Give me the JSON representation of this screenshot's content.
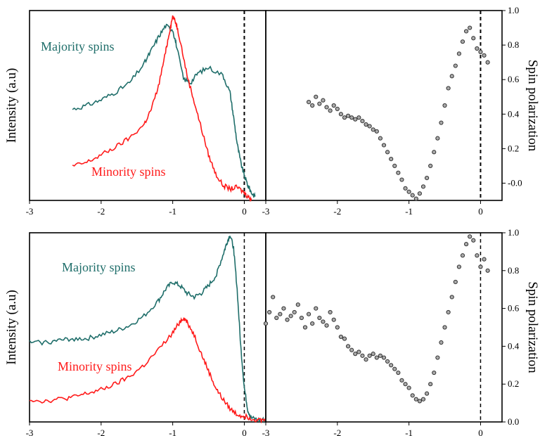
{
  "colors": {
    "majority": "#1f6e6a",
    "minority": "#ff1a1a",
    "axis": "#000000",
    "marker_edge": "#333333",
    "marker_fill": "#aaaaaa"
  },
  "chart_data": [
    {
      "type": "line",
      "panel": "top-left",
      "ylabel": "Intensity (a.u)",
      "xlim": [
        -3,
        0.3
      ],
      "ylim": [
        0,
        1
      ],
      "x_ticks": [
        "-3",
        "-2",
        "-1",
        "0"
      ],
      "fermi_marker_x": 0,
      "series": [
        {
          "name": "Majority spins",
          "color_key": "majority",
          "x": [
            -2.4,
            -2.2,
            -2.0,
            -1.8,
            -1.6,
            -1.4,
            -1.3,
            -1.2,
            -1.1,
            -1.0,
            -0.95,
            -0.85,
            -0.75,
            -0.65,
            -0.5,
            -0.3,
            -0.2,
            -0.15,
            -0.1,
            -0.05,
            0.0,
            0.05,
            0.1,
            0.15
          ],
          "y": [
            0.48,
            0.5,
            0.53,
            0.57,
            0.62,
            0.72,
            0.79,
            0.86,
            0.92,
            0.9,
            0.82,
            0.64,
            0.62,
            0.67,
            0.7,
            0.66,
            0.57,
            0.44,
            0.3,
            0.2,
            0.13,
            0.08,
            0.04,
            0.02
          ]
        },
        {
          "name": "Minority spins",
          "color_key": "minority",
          "x": [
            -2.4,
            -2.2,
            -2.0,
            -1.8,
            -1.6,
            -1.4,
            -1.3,
            -1.2,
            -1.1,
            -1.05,
            -1.0,
            -0.95,
            -0.9,
            -0.8,
            -0.7,
            -0.6,
            -0.5,
            -0.4,
            -0.3,
            -0.2,
            -0.1,
            0.0,
            0.05,
            0.1
          ],
          "y": [
            0.18,
            0.2,
            0.24,
            0.28,
            0.33,
            0.4,
            0.48,
            0.6,
            0.78,
            0.88,
            0.97,
            0.93,
            0.85,
            0.66,
            0.52,
            0.38,
            0.24,
            0.14,
            0.08,
            0.06,
            0.07,
            0.04,
            0.02,
            0.01
          ]
        }
      ]
    },
    {
      "type": "scatter",
      "panel": "top-right",
      "ylabel": "Spin polarization",
      "xlim": [
        -3,
        0.3
      ],
      "ylim": [
        -0.1,
        1.0
      ],
      "x_ticks": [
        "-3",
        "-2",
        "-1",
        "0"
      ],
      "y_ticks": [
        "-0.0",
        "0.2",
        "0.4",
        "0.6",
        "0.8",
        "1.0"
      ],
      "fermi_marker_x": 0,
      "series": [
        {
          "x": [
            -2.4,
            -2.35,
            -2.3,
            -2.25,
            -2.2,
            -2.15,
            -2.1,
            -2.05,
            -2.0,
            -1.95,
            -1.9,
            -1.85,
            -1.8,
            -1.75,
            -1.7,
            -1.65,
            -1.6,
            -1.55,
            -1.5,
            -1.45,
            -1.4,
            -1.35,
            -1.3,
            -1.25,
            -1.2,
            -1.15,
            -1.1,
            -1.05,
            -1.0,
            -0.95,
            -0.9,
            -0.85,
            -0.8,
            -0.75,
            -0.7,
            -0.65,
            -0.6,
            -0.55,
            -0.5,
            -0.45,
            -0.4,
            -0.35,
            -0.3,
            -0.25,
            -0.2,
            -0.15,
            -0.1,
            -0.05,
            0.0,
            0.05,
            0.1
          ],
          "y": [
            0.47,
            0.45,
            0.5,
            0.46,
            0.48,
            0.44,
            0.42,
            0.45,
            0.43,
            0.4,
            0.38,
            0.39,
            0.38,
            0.37,
            0.38,
            0.36,
            0.34,
            0.33,
            0.31,
            0.3,
            0.26,
            0.22,
            0.18,
            0.14,
            0.1,
            0.06,
            0.02,
            -0.03,
            -0.05,
            -0.07,
            -0.09,
            -0.06,
            -0.02,
            0.03,
            0.1,
            0.18,
            0.26,
            0.35,
            0.45,
            0.55,
            0.62,
            0.68,
            0.75,
            0.82,
            0.88,
            0.9,
            0.84,
            0.78,
            0.76,
            0.74,
            0.7
          ]
        }
      ]
    },
    {
      "type": "line",
      "panel": "bottom-left",
      "ylabel": "Intensity (a.u)",
      "xlim": [
        -3,
        0.3
      ],
      "ylim": [
        0,
        1
      ],
      "x_ticks": [
        "-3",
        "-2",
        "-1",
        "0"
      ],
      "fermi_marker_x": 0,
      "series": [
        {
          "name": "Majority spins",
          "color_key": "majority",
          "x": [
            -3.0,
            -2.8,
            -2.6,
            -2.4,
            -2.2,
            -2.0,
            -1.8,
            -1.6,
            -1.4,
            -1.2,
            -1.1,
            -1.0,
            -0.9,
            -0.8,
            -0.7,
            -0.6,
            -0.5,
            -0.4,
            -0.3,
            -0.25,
            -0.2,
            -0.15,
            -0.1,
            -0.05,
            0.0,
            0.05,
            0.1,
            0.2,
            0.3
          ],
          "y": [
            0.42,
            0.42,
            0.43,
            0.44,
            0.44,
            0.46,
            0.48,
            0.51,
            0.56,
            0.64,
            0.7,
            0.74,
            0.72,
            0.68,
            0.66,
            0.68,
            0.72,
            0.77,
            0.88,
            0.94,
            0.99,
            0.92,
            0.7,
            0.4,
            0.18,
            0.06,
            0.02,
            0.01,
            0.01
          ]
        },
        {
          "name": "Minority spins",
          "color_key": "minority",
          "x": [
            -3.0,
            -2.8,
            -2.6,
            -2.4,
            -2.2,
            -2.0,
            -1.8,
            -1.6,
            -1.4,
            -1.2,
            -1.0,
            -0.9,
            -0.85,
            -0.8,
            -0.7,
            -0.6,
            -0.5,
            -0.4,
            -0.3,
            -0.2,
            -0.1,
            0.0,
            0.1,
            0.2,
            0.3
          ],
          "y": [
            0.12,
            0.11,
            0.12,
            0.13,
            0.15,
            0.17,
            0.2,
            0.24,
            0.3,
            0.38,
            0.47,
            0.53,
            0.55,
            0.53,
            0.46,
            0.36,
            0.27,
            0.18,
            0.12,
            0.07,
            0.04,
            0.03,
            0.02,
            0.01,
            0.01
          ]
        }
      ]
    },
    {
      "type": "scatter",
      "panel": "bottom-right",
      "ylabel": "Spin polarization",
      "xlim": [
        -3,
        0.3
      ],
      "ylim": [
        0,
        1.0
      ],
      "x_ticks": [
        "-3",
        "-2",
        "-1",
        "0"
      ],
      "y_ticks": [
        "0.0",
        "0.2",
        "0.4",
        "0.6",
        "0.8",
        "1.0"
      ],
      "fermi_marker_x": 0,
      "series": [
        {
          "x": [
            -3.0,
            -2.95,
            -2.9,
            -2.85,
            -2.8,
            -2.75,
            -2.7,
            -2.65,
            -2.6,
            -2.55,
            -2.5,
            -2.45,
            -2.4,
            -2.35,
            -2.3,
            -2.25,
            -2.2,
            -2.15,
            -2.1,
            -2.05,
            -2.0,
            -1.95,
            -1.9,
            -1.85,
            -1.8,
            -1.75,
            -1.7,
            -1.65,
            -1.6,
            -1.55,
            -1.5,
            -1.45,
            -1.4,
            -1.35,
            -1.3,
            -1.25,
            -1.2,
            -1.15,
            -1.1,
            -1.05,
            -1.0,
            -0.95,
            -0.9,
            -0.85,
            -0.8,
            -0.75,
            -0.7,
            -0.65,
            -0.6,
            -0.55,
            -0.5,
            -0.45,
            -0.4,
            -0.35,
            -0.3,
            -0.25,
            -0.2,
            -0.15,
            -0.1,
            -0.05,
            0.0,
            0.05,
            0.1
          ],
          "y": [
            0.52,
            0.58,
            0.66,
            0.55,
            0.57,
            0.6,
            0.54,
            0.56,
            0.58,
            0.62,
            0.55,
            0.5,
            0.57,
            0.52,
            0.6,
            0.55,
            0.53,
            0.51,
            0.58,
            0.54,
            0.5,
            0.45,
            0.44,
            0.4,
            0.38,
            0.36,
            0.37,
            0.35,
            0.33,
            0.35,
            0.36,
            0.34,
            0.35,
            0.34,
            0.32,
            0.3,
            0.28,
            0.26,
            0.22,
            0.2,
            0.18,
            0.14,
            0.12,
            0.11,
            0.12,
            0.15,
            0.2,
            0.26,
            0.34,
            0.42,
            0.5,
            0.58,
            0.66,
            0.74,
            0.82,
            0.88,
            0.94,
            0.98,
            0.96,
            0.88,
            0.82,
            0.86,
            0.8
          ]
        }
      ]
    }
  ]
}
